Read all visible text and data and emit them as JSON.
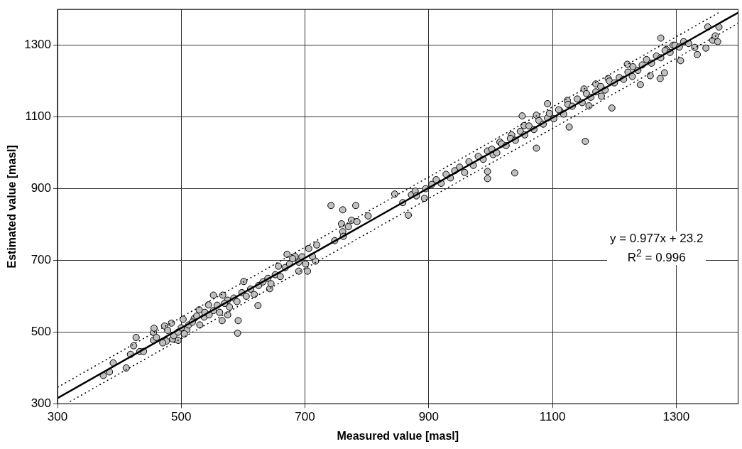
{
  "chart_data": {
    "type": "scatter",
    "xlabel": "Measured value [masl]",
    "ylabel": "Estimated value [masl]",
    "xlim": [
      300,
      1400
    ],
    "ylim": [
      300,
      1400
    ],
    "xticks": [
      300,
      500,
      700,
      900,
      1100,
      1300
    ],
    "yticks": [
      300,
      500,
      700,
      900,
      1100,
      1300
    ],
    "grid": true,
    "legend": false,
    "annotations": [
      "y = 0.977x + 23.2",
      "R$^{2}$ = 0.996"
    ],
    "series": [
      {
        "marker": "circle",
        "color": "#c0c0c0",
        "x": [
          374,
          384,
          390,
          411,
          418,
          423,
          427,
          433,
          439,
          455,
          456,
          455,
          473,
          484,
          476,
          495,
          503,
          591,
          592,
          566,
          552,
          544,
          529,
          521,
          575,
          509,
          486,
          624,
          643,
          601,
          671,
          657,
          684,
          701,
          704,
          690,
          717,
          712,
          706,
          719,
          742,
          761,
          782,
          759,
          775,
          784,
          770,
          761,
          762,
          748,
          802,
          845,
          858,
          867,
          872,
          878,
          893,
          567,
          537,
          575,
          1039,
          1074,
          1153,
          1127,
          1092,
          1051,
          1196,
          1242,
          1258,
          1274,
          1281,
          1275,
          1334,
          1348,
          1359,
          1367,
          1363,
          1369,
          1351,
          1330,
          1307,
          1295,
          1284,
          1221,
          1229,
          1190,
          1170,
          1151,
          1179,
          1159,
          1124,
          1112,
          1092,
          1074,
          1054,
          1034,
          1015,
          1004,
          995,
          995,
          460,
          470,
          478,
          488,
          495,
          500,
          505,
          512,
          518,
          525,
          530,
          538,
          545,
          552,
          558,
          562,
          570,
          578,
          585,
          590,
          598,
          605,
          612,
          618,
          625,
          632,
          640,
          645,
          652,
          660,
          668,
          675,
          680,
          690,
          695,
          880,
          895,
          905,
          912,
          920,
          928,
          935,
          942,
          950,
          958,
          965,
          972,
          980,
          988,
          995,
          1002,
          1010,
          1018,
          1025,
          1032,
          1040,
          1048,
          1055,
          1062,
          1070,
          1078,
          1085,
          1095,
          1102,
          1110,
          1118,
          1125,
          1132,
          1140,
          1148,
          1155,
          1162,
          1170,
          1178,
          1185,
          1192,
          1200,
          1208,
          1215,
          1222,
          1230,
          1238,
          1245,
          1252,
          1260,
          1268,
          1275,
          1282,
          1290,
          1298,
          1305,
          1312,
          1320
        ],
        "values": [
          379,
          389,
          414,
          400,
          438,
          462,
          485,
          446,
          446,
          499,
          511,
          477,
          517,
          525,
          475,
          477,
          536,
          497,
          532,
          532,
          603,
          576,
          562,
          538,
          589,
          507,
          481,
          574,
          621,
          641,
          717,
          684,
          711,
          690,
          670,
          670,
          698,
          711,
          733,
          743,
          853,
          841,
          853,
          802,
          812,
          808,
          794,
          780,
          767,
          755,
          824,
          885,
          861,
          826,
          883,
          893,
          873,
          603,
          542,
          548,
          944,
          1013,
          1032,
          1072,
          1137,
          1103,
          1125,
          1190,
          1215,
          1207,
          1223,
          1320,
          1274,
          1292,
          1314,
          1310,
          1326,
          1351,
          1351,
          1294,
          1257,
          1300,
          1288,
          1247,
          1213,
          1207,
          1192,
          1178,
          1158,
          1131,
          1146,
          1117,
          1097,
          1105,
          1076,
          1050,
          1030,
          995,
          948,
          928,
          485,
          470,
          505,
          490,
          500,
          512,
          495,
          520,
          528,
          545,
          520,
          555,
          548,
          560,
          575,
          555,
          580,
          570,
          595,
          585,
          610,
          600,
          620,
          605,
          630,
          640,
          650,
          635,
          660,
          655,
          680,
          690,
          705,
          695,
          710,
          880,
          900,
          912,
          925,
          915,
          940,
          930,
          950,
          960,
          945,
          975,
          965,
          990,
          982,
          1005,
          1010,
          1000,
          1025,
          1020,
          1040,
          1035,
          1060,
          1050,
          1075,
          1065,
          1090,
          1080,
          1110,
          1095,
          1120,
          1108,
          1135,
          1130,
          1150,
          1140,
          1165,
          1155,
          1170,
          1185,
          1175,
          1200,
          1195,
          1210,
          1205,
          1225,
          1240,
          1230,
          1245,
          1260,
          1250,
          1270,
          1265,
          1285,
          1280,
          1300,
          1295,
          1310,
          1305
        ]
      },
      {
        "type": "line",
        "marker": "none",
        "line_style": "solid",
        "color": "#000000",
        "x": [
          300,
          1400
        ],
        "values": [
          316,
          1391
        ]
      },
      {
        "type": "line",
        "marker": "none",
        "line_style": "dotted",
        "color": "#000000",
        "x": [
          300,
          1370
        ],
        "values": [
          346,
          1392
        ]
      },
      {
        "type": "line",
        "marker": "none",
        "line_style": "dotted",
        "color": "#000000",
        "x": [
          320,
          1400
        ],
        "values": [
          306,
          1361
        ]
      }
    ]
  }
}
